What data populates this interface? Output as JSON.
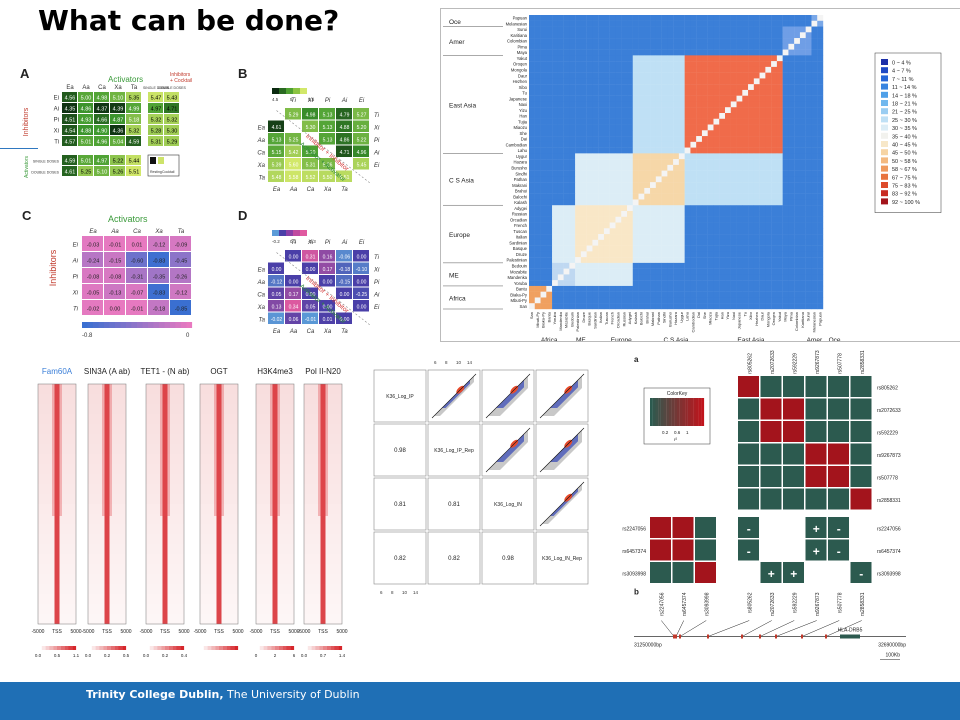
{
  "slide": {
    "title": "What can be done?",
    "footer_bold": "Trinity College Dublin,",
    "footer_rest": " The University of Dublin"
  },
  "panel_a": {
    "label": "A",
    "activators_title": "Activators",
    "inhibitors_title": "Inhibitors",
    "inhibitors_legend": "Inhibitors",
    "cocktail_legend": "+ Cocktail",
    "columns": [
      "Ea",
      "Aa",
      "Ca",
      "Xa",
      "Ta"
    ],
    "rows": [
      "Ei",
      "Ai",
      "Pi",
      "Xi",
      "Ti"
    ],
    "cells": [
      [
        "4.56",
        "5.00",
        "4.98",
        "5.10",
        "5.35"
      ],
      [
        "4.35",
        "4.86",
        "4.37",
        "4.39",
        "4.99"
      ],
      [
        "4.51",
        "4.93",
        "4.66",
        "4.87",
        "5.18"
      ],
      [
        "4.54",
        "4.88",
        "4.90",
        "4.36",
        "5.32"
      ],
      [
        "4.57",
        "5.01",
        "4.96",
        "5.04",
        "4.59"
      ]
    ],
    "right_header": [
      "SINGLE DOSES",
      "DOUBLE DOSES"
    ],
    "right_cells": [
      [
        "5.47",
        "5.43"
      ],
      [
        "4.97",
        "4.71"
      ],
      [
        "5.32",
        "5.32"
      ],
      [
        "5.28",
        "5.30"
      ],
      [
        "5.31",
        "5.29"
      ]
    ],
    "act_rows": [
      "SINGLE DOSES",
      "DOUBLE DOSES"
    ],
    "act_cells": [
      [
        "4.59",
        "5.01",
        "4.97",
        "5.22",
        "5.44"
      ],
      [
        "4.61",
        "5.25",
        "5.10",
        "5.26",
        "5.51"
      ]
    ],
    "act_side_label": "Activators",
    "resting_label": "Resting",
    "cocktail_label": "Cocktail"
  },
  "panel_b": {
    "label": "B",
    "scale": [
      "4.5",
      "5",
      "5.5"
    ],
    "top_cols": [
      "Ti",
      "Xi",
      "Pi",
      "Ai",
      "Ei"
    ],
    "rows": [
      "Ea",
      "Aa",
      "Ca",
      "Xa",
      "Ta"
    ],
    "right_rows": [
      "Ti",
      "Xi",
      "Pi",
      "Ai",
      "Ei"
    ],
    "upper": [
      [
        "5.29",
        "4.98",
        "5.13",
        "4.79",
        "5.27"
      ],
      [
        "",
        "5.30",
        "5.13",
        "4.88",
        "5.20"
      ],
      [
        "",
        "",
        "5.13",
        "4.86",
        "5.22"
      ],
      [
        "",
        "",
        "",
        "4.71",
        "4.96"
      ],
      [
        "",
        "",
        "",
        "",
        "5.45"
      ]
    ],
    "lower": [
      [
        "4.61",
        "",
        "",
        "",
        ""
      ],
      [
        "5.13",
        "5.25",
        "",
        "",
        ""
      ],
      [
        "5.15",
        "5.42",
        "5.10",
        "",
        ""
      ],
      [
        "5.39",
        "5.60",
        "5.31",
        "5.26",
        ""
      ],
      [
        "5.48",
        "5.58",
        "5.52",
        "5.50",
        "5.51"
      ]
    ],
    "bottom_cols": [
      "Ea",
      "Aa",
      "Ca",
      "Xa",
      "Ta"
    ],
    "diag1": "Inhibitor + Inhibitor",
    "diag2": "Activator + Activator"
  },
  "panel_c": {
    "label": "C",
    "title": "Activators",
    "side": "Inhibitors",
    "cols": [
      "Ea",
      "Aa",
      "Ca",
      "Xa",
      "Ta"
    ],
    "rows": [
      "Ei",
      "Ai",
      "Pi",
      "Xi",
      "Ti"
    ],
    "cells": [
      [
        "-0.03",
        "-0.01",
        "0.01",
        "-0.12",
        "-0.09"
      ],
      [
        "-0.24",
        "-0.15",
        "-0.60",
        "-0.83",
        "-0.45"
      ],
      [
        "-0.08",
        "-0.08",
        "-0.31",
        "-0.35",
        "-0.26"
      ],
      [
        "-0.05",
        "-0.13",
        "-0.07",
        "-0.83",
        "-0.12"
      ],
      [
        "-0.02",
        "0.00",
        "-0.01",
        "-0.18",
        "-0.85"
      ]
    ],
    "scale_min": "-0.8",
    "scale_max": "0"
  },
  "panel_d": {
    "label": "D",
    "scale": [
      "-0.2",
      "0.1",
      "-0.3"
    ],
    "top_cols": [
      "Ti",
      "Xi",
      "Pi",
      "Ai",
      "Ei"
    ],
    "rows": [
      "Ea",
      "Aa",
      "Ca",
      "Xa",
      "Ta"
    ],
    "right_rows": [
      "Ti",
      "Xi",
      "Pi",
      "Ai",
      "Ei"
    ],
    "upper": [
      [
        "0.00",
        "0.31",
        "0.16",
        "-0.06",
        "0.00"
      ],
      [
        "",
        "0.00",
        "0.17",
        "-0.18",
        "-0.10"
      ],
      [
        "",
        "",
        "0.00",
        "-0.15",
        "0.00"
      ],
      [
        "",
        "",
        "",
        "0.00",
        "-0.25"
      ],
      [
        "",
        "",
        "",
        "",
        "0.00"
      ]
    ],
    "lower": [
      [
        "0.00",
        "",
        "",
        "",
        ""
      ],
      [
        "-0.12",
        "0.00",
        "",
        "",
        ""
      ],
      [
        "0.05",
        "0.17",
        "0.00",
        "",
        ""
      ],
      [
        "0.13",
        "0.34",
        "0.05",
        "0.00",
        ""
      ],
      [
        "-0.02",
        "0.06",
        "-0.01",
        "0.01",
        "0.00"
      ]
    ],
    "bottom_cols": [
      "Ea",
      "Aa",
      "Ca",
      "Xa",
      "Ta"
    ],
    "diag1": "Inhibitor + Inhibitor",
    "diag2": "Activator + Activator"
  },
  "heatmap_ibs": {
    "left_groups": [
      "Oce",
      "Amer",
      "East Asia",
      "C S Asia",
      "Europe",
      "ME",
      "Africa"
    ],
    "row_labels": [
      "Papuan",
      "Melanesian",
      "Surui",
      "Karitiana",
      "Colombian",
      "Pima",
      "Maya",
      "Yakut",
      "Oroqen",
      "Mongola",
      "Daur",
      "Hezhen",
      "Xibo",
      "Tu",
      "Japanese",
      "Naxi",
      "Yizu",
      "Han",
      "Tujia",
      "Miaozu",
      "She",
      "Dai",
      "Cambodian",
      "Lahu",
      "Uygur",
      "Hazara",
      "Burusho",
      "Sindhi",
      "Pathan",
      "Makrani",
      "Brahui",
      "Balochi",
      "Kalash",
      "Adygei",
      "Russian",
      "Orcadian",
      "French",
      "Tuscan",
      "Italian",
      "Sardinian",
      "Basque",
      "Druze",
      "Palestinian",
      "Bedouin",
      "Mozabite",
      "Mandenka",
      "Yoruba",
      "Bantu",
      "Biaka-Py",
      "Mbuti-Py",
      "San"
    ],
    "bottom_groups": [
      "Africa",
      "ME",
      "Europe",
      "C S Asia",
      "East Asia",
      "Amer",
      "Oce"
    ],
    "legend": [
      "0 ~ 4  %",
      "4 ~ 7  %",
      "7 ~ 11  %",
      "11 ~ 14  %",
      "14 ~ 18  %",
      "18 ~ 21  %",
      "21 ~ 25  %",
      "25 ~ 30  %",
      "30 ~ 35  %",
      "35 ~ 40  %",
      "40 ~ 45  %",
      "45 ~ 50  %",
      "50 ~ 58  %",
      "58 ~ 67  %",
      "67 ~ 75  %",
      "75 ~ 83  %",
      "83 ~ 92  %",
      "92 ~ 100  %"
    ],
    "legend_colors": [
      "#1c2fa8",
      "#1e49c4",
      "#2466d8",
      "#3784e0",
      "#4fa0e8",
      "#71b8ee",
      "#9acdf2",
      "#bfe0f5",
      "#dcedf6",
      "#f2f2ee",
      "#f7e7c8",
      "#f6d4a4",
      "#f3b980",
      "#ef9a5e",
      "#e8743f",
      "#dd4b2b",
      "#c82a22",
      "#a3141c"
    ]
  },
  "panel_profiles": {
    "columns": [
      "Fam60A",
      "SIN3A (A ab)",
      "TET1 - (N ab)",
      "OGT",
      "H3K4me3",
      "Pol II-N20"
    ],
    "axis_ticks": [
      "-5000",
      "TSS",
      "5000"
    ],
    "scales": [
      [
        "0.0",
        "0.5",
        "1.1"
      ],
      [
        "0.0",
        "0.2",
        "0.5"
      ],
      [
        "0.0",
        "0.2",
        "0.4"
      ],
      [
        "",
        "",
        " "
      ],
      [
        "0",
        "2",
        "6"
      ],
      [
        "0.0",
        "0.7",
        "1.4"
      ]
    ]
  },
  "panel_scatter": {
    "diag": [
      "K36_Log_IP",
      "K36_Log_IP_Rep",
      "K36_Log_IN",
      "K36_Log_IN_Rep"
    ],
    "corr": [
      [
        "0.98"
      ],
      [
        "0.81",
        "0.81"
      ],
      [
        "0.82",
        "0.82",
        "0.98"
      ]
    ],
    "ticks": [
      "6",
      "8",
      "10",
      "14"
    ]
  },
  "panel_ld": {
    "label_a": "a",
    "label_b": "b",
    "colorkey_title": "ColorKey",
    "colorkey_ticks": [
      "0.2",
      "0.6",
      "1"
    ],
    "colorkey_sub": "r²",
    "top_cols": [
      "rs805262",
      "rs2072633",
      "rs592229",
      "rs9267873",
      "rs507778",
      "rs2858331"
    ],
    "right_rows_top": [
      "rs805262",
      "rs2072633",
      "rs592229",
      "rs9267873",
      "rs507778",
      "rs2858331"
    ],
    "right_rows_bot": [
      "rs2247056",
      "rs6457374",
      "rs3093998"
    ],
    "left_rows_bot": [
      "rs2247056",
      "rs6457374",
      "rs3093998"
    ],
    "bottom_cols": [
      "rs2247056",
      "rs6457374",
      "rs3093998",
      "rs805262",
      "rs2072633",
      "rs592229",
      "rs9267873",
      "rs507778",
      "rs2858331"
    ],
    "gene": "HLA-DRB5",
    "start": "31250000bp",
    "end": "32690000bp",
    "scale": "100Kb"
  }
}
